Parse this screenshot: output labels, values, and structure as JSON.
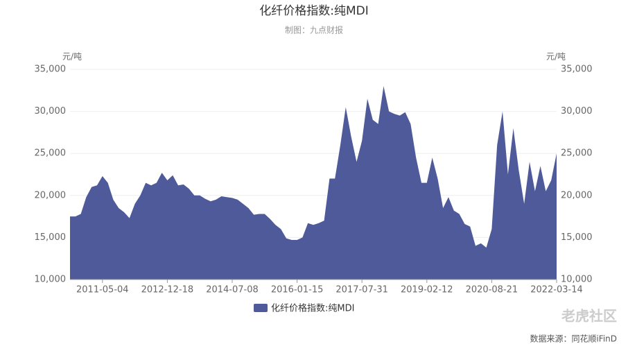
{
  "chart_data": {
    "type": "area",
    "title": "化纤价格指数:纯MDI",
    "subtitle": "制图：九点财报",
    "y_unit": "元/吨",
    "y2_unit": "元/吨",
    "source": "数据来源：同花顺iFinD",
    "watermark": "老虎社区",
    "categories": [
      null,
      null,
      null,
      null,
      null,
      null,
      "2011-05-04",
      null,
      null,
      null,
      null,
      null,
      null,
      null,
      null,
      null,
      null,
      null,
      "2012-12-18",
      null,
      null,
      null,
      null,
      null,
      null,
      null,
      null,
      null,
      null,
      null,
      "2014-07-08",
      null,
      null,
      null,
      null,
      null,
      null,
      null,
      null,
      null,
      null,
      null,
      "2016-01-15",
      null,
      null,
      null,
      null,
      null,
      null,
      null,
      null,
      null,
      null,
      null,
      "2017-07-31",
      null,
      null,
      null,
      null,
      null,
      null,
      null,
      null,
      null,
      null,
      null,
      "2019-02-12",
      null,
      null,
      null,
      null,
      null,
      null,
      null,
      null,
      null,
      null,
      null,
      "2020-08-21",
      null,
      null,
      null,
      null,
      null,
      null,
      null,
      null,
      null,
      null,
      null,
      "2022-03-14"
    ],
    "series": [
      {
        "name": "化纤价格指数:纯MDI",
        "color": "#4e5a9a",
        "values": [
          17500,
          17500,
          17800,
          19800,
          21000,
          21200,
          22300,
          21500,
          19500,
          18500,
          18000,
          17300,
          19000,
          20000,
          21500,
          21200,
          21500,
          22700,
          21800,
          22400,
          21200,
          21300,
          20800,
          20000,
          20000,
          19600,
          19300,
          19500,
          19900,
          19800,
          19700,
          19500,
          19000,
          18500,
          17700,
          17800,
          17800,
          17200,
          16500,
          16000,
          14900,
          14700,
          14700,
          15000,
          16700,
          16500,
          16700,
          17000,
          22000,
          22000,
          26000,
          30500,
          27000,
          24000,
          26500,
          31500,
          29000,
          28500,
          33000,
          30000,
          29700,
          29500,
          29900,
          28500,
          24500,
          21500,
          21500,
          24500,
          22000,
          18500,
          19800,
          18200,
          17800,
          16600,
          16300,
          14000,
          14300,
          13800,
          16000,
          26000,
          30000,
          22500,
          28000,
          23000,
          19000,
          24000,
          20500,
          23500,
          20500,
          21800,
          25000
        ]
      }
    ],
    "ylim": [
      10000,
      35000
    ],
    "yticks": [
      {
        "value": 10000,
        "label": "10,000"
      },
      {
        "value": 15000,
        "label": "15,000"
      },
      {
        "value": 20000,
        "label": "20,000"
      },
      {
        "value": 25000,
        "label": "25,000"
      },
      {
        "value": 30000,
        "label": "30,000"
      },
      {
        "value": 35000,
        "label": "35,000"
      }
    ],
    "y2lim": [
      10000,
      35000
    ],
    "y2ticks": [
      {
        "value": 10000,
        "label": "10,000"
      },
      {
        "value": 15000,
        "label": "15,000"
      },
      {
        "value": 20000,
        "label": "20,000"
      },
      {
        "value": 25000,
        "label": "25,000"
      },
      {
        "value": 30000,
        "label": "30,000"
      },
      {
        "value": 35000,
        "label": "35,000"
      }
    ],
    "grid": true,
    "legend": "bottom"
  }
}
